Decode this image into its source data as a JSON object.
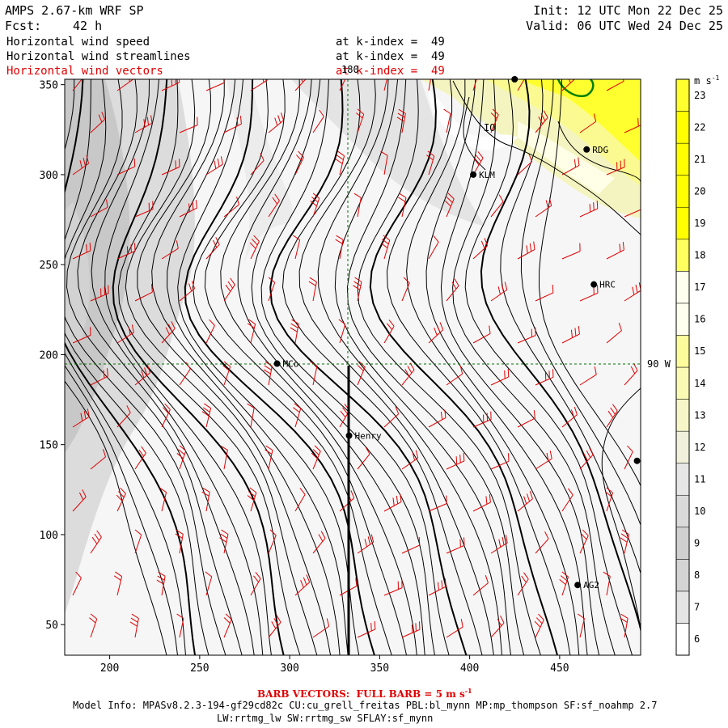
{
  "header": {
    "model_title": "AMPS 2.67-km WRF SP",
    "forecast_label": "Fcst:",
    "forecast_hours": "42 h",
    "init_time": "Init: 12 UTC Mon 22 Dec 25",
    "valid_time": "Valid: 06 UTC Wed 24 Dec 25"
  },
  "fields": [
    {
      "name": "Horizontal wind speed",
      "level": "at k-index =  49",
      "color": "#000000"
    },
    {
      "name": "Horizontal wind streamlines",
      "level": "at k-index =  49",
      "color": "#000000"
    },
    {
      "name": "Horizontal wind vectors",
      "level": "at k-index =  49",
      "color": "#e00000"
    }
  ],
  "colorbar": {
    "units": "m s-1",
    "levels": [
      6,
      7,
      8,
      9,
      10,
      11,
      12,
      13,
      14,
      15,
      16,
      17,
      18,
      19,
      20,
      21,
      22,
      23
    ],
    "colors": [
      "#ffffff",
      "#e4e4e4",
      "#d4d4d4",
      "#d0d0d0",
      "#dadada",
      "#e6e6e6",
      "#f0f0dc",
      "#f6f6c8",
      "#fafab4",
      "#fcfc9c",
      "#fffff0",
      "#fffff0",
      "#ffff60",
      "#ffff00",
      "#ffff00",
      "#ffff00",
      "#ffff00",
      "#ffff30"
    ]
  },
  "axes": {
    "x_ticks": [
      200,
      250,
      300,
      350,
      400,
      450
    ],
    "y_ticks": [
      50,
      100,
      150,
      200,
      250,
      300,
      350
    ],
    "x_range": [
      175,
      495
    ],
    "y_range": [
      33,
      353
    ]
  },
  "gridlines": {
    "longitude_label": "180",
    "latitude_label": "90 W"
  },
  "stations": [
    {
      "name": "MCo",
      "x": 293,
      "y": 195
    },
    {
      "name": "Henry",
      "x": 333,
      "y": 155
    },
    {
      "name": "KLM",
      "x": 402,
      "y": 300
    },
    {
      "name": "RDG",
      "x": 465,
      "y": 314
    },
    {
      "name": "HRC",
      "x": 469,
      "y": 239
    },
    {
      "name": "AG2",
      "x": 460,
      "y": 72
    },
    {
      "name": "",
      "x": 425,
      "y": 353
    },
    {
      "name": "",
      "x": 493,
      "y": 141
    }
  ],
  "labels": {
    "io_label": "IO",
    "barb_note": "BARB VECTORS:  FULL BARB = 5 m s",
    "barb_note_sup": "-1",
    "model_info_1": "Model Info: MPASv8.2.3-194-gf29cd82c CU:cu_grell_freitas PBL:bl_mynn MP:mp_thompson SF:sf_noahmp 2.7",
    "model_info_2": "LW:rrtmg_lw SW:rrtmg_sw SFLAY:sf_mynn"
  }
}
